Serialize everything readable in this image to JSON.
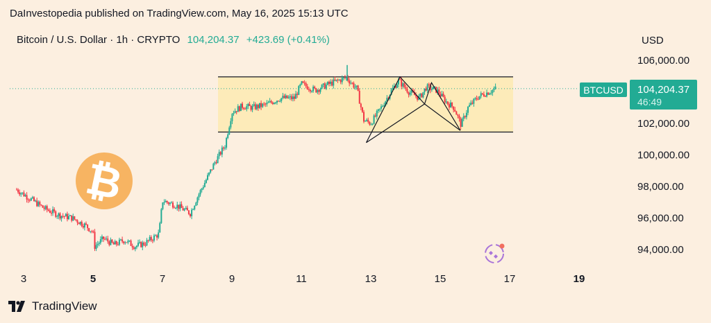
{
  "header": {
    "publisher": "DaInvestopedia published on TradingView.com, May 16, 2025 15:13 UTC",
    "symbol_desc": "Bitcoin / U.S. Dollar · 1h · CRYPTO",
    "price": "104,204.37",
    "change": "+423.69 (+0.41%)",
    "currency": "USD"
  },
  "price_tag": {
    "ticker": "BTCUSD",
    "price": "104,204.37",
    "countdown": "46:49"
  },
  "footer": {
    "brand": "TradingView"
  },
  "colors": {
    "background": "#fcefe0",
    "up": "#22ab94",
    "down": "#f23645",
    "range_box": "#fdeab2",
    "brand_orange": "#f7931a"
  },
  "chart_data": {
    "type": "candlestick",
    "y_axis": {
      "min": 93000,
      "max": 107000,
      "ticks": [
        106000,
        102000,
        100000,
        98000,
        96000,
        94000
      ],
      "tick_labels": [
        "106,000.00",
        "102,000.00",
        "100,000.00",
        "98,000.00",
        "96,000.00",
        "94,000.00"
      ]
    },
    "x_axis": {
      "ticks": [
        "3",
        "5",
        "7",
        "9",
        "11",
        "13",
        "15",
        "17",
        "19"
      ]
    },
    "last_price": 104204.37,
    "path": [
      [
        2.8,
        97800
      ],
      [
        3.2,
        97200
      ],
      [
        3.6,
        96600
      ],
      [
        4.0,
        96200
      ],
      [
        4.4,
        96000
      ],
      [
        4.8,
        95500
      ],
      [
        5.0,
        95100
      ],
      [
        5.05,
        94200
      ],
      [
        5.3,
        94700
      ],
      [
        5.6,
        94300
      ],
      [
        5.9,
        94600
      ],
      [
        6.2,
        94200
      ],
      [
        6.5,
        94400
      ],
      [
        6.9,
        95000
      ],
      [
        7.0,
        97100
      ],
      [
        7.4,
        96800
      ],
      [
        7.8,
        96300
      ],
      [
        8.0,
        97300
      ],
      [
        8.3,
        98600
      ],
      [
        8.5,
        99500
      ],
      [
        8.8,
        100600
      ],
      [
        9.0,
        102700
      ],
      [
        9.3,
        103100
      ],
      [
        9.6,
        103000
      ],
      [
        10.0,
        103200
      ],
      [
        10.4,
        103600
      ],
      [
        10.8,
        103600
      ],
      [
        11.0,
        104500
      ],
      [
        11.4,
        104100
      ],
      [
        11.8,
        104500
      ],
      [
        12.3,
        104900
      ],
      [
        12.6,
        104200
      ],
      [
        12.8,
        102200
      ],
      [
        13.0,
        102000
      ],
      [
        13.3,
        103000
      ],
      [
        13.6,
        104100
      ],
      [
        13.8,
        104700
      ],
      [
        14.1,
        104000
      ],
      [
        14.4,
        103600
      ],
      [
        14.6,
        104300
      ],
      [
        14.9,
        104100
      ],
      [
        15.2,
        103300
      ],
      [
        15.4,
        103000
      ],
      [
        15.6,
        101900
      ],
      [
        15.8,
        103000
      ],
      [
        16.1,
        103700
      ],
      [
        16.4,
        104000
      ],
      [
        16.6,
        104204
      ]
    ],
    "range_box": {
      "x0": 8.6,
      "x1": 17.1,
      "y_top": 104950,
      "y_bottom": 101450
    },
    "pattern_lines": [
      [
        [
          12.87,
          100780
        ],
        [
          13.84,
          104950
        ],
        [
          14.55,
          103230
        ],
        [
          14.75,
          104580
        ],
        [
          15.58,
          101550
        ]
      ],
      [
        [
          12.87,
          100780
        ],
        [
          14.55,
          103230
        ],
        [
          15.58,
          101550
        ]
      ]
    ]
  }
}
